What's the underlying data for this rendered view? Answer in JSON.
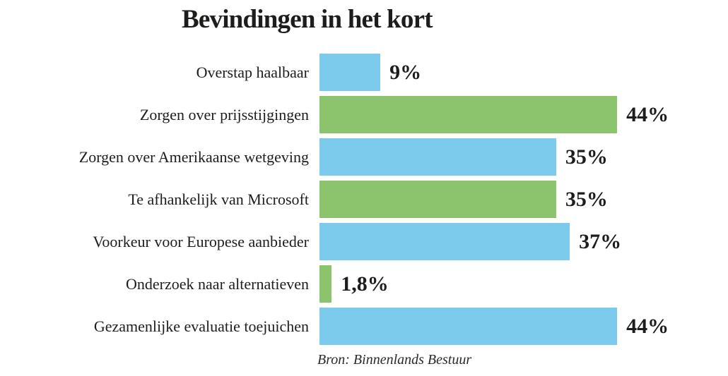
{
  "title": "Bevindingen in het kort",
  "source": "Bron: Binnenlands Bestuur",
  "colors": {
    "blue": "#7dcbec",
    "green": "#8bc46d",
    "text": "#1d1d1b"
  },
  "chart_data": {
    "type": "bar",
    "orientation": "horizontal",
    "title": "Bevindingen in het kort",
    "categories": [
      "Overstap haalbaar",
      "Zorgen over prijsstijgingen",
      "Zorgen over Amerikaanse wetgeving",
      "Te afhankelijk van Microsoft",
      "Voorkeur voor Europese aanbieder",
      "Onderzoek naar alternatieven",
      "Gezamenlijke evaluatie toejuichen"
    ],
    "values": [
      9,
      44,
      35,
      35,
      37,
      1.8,
      44
    ],
    "value_labels": [
      "9%",
      "44%",
      "35%",
      "35%",
      "37%",
      "1,8%",
      "44%"
    ],
    "bar_colors": [
      "blue",
      "green",
      "blue",
      "green",
      "blue",
      "green",
      "blue"
    ],
    "unit": "%",
    "xlim": [
      0,
      47
    ],
    "grid": false,
    "legend": false,
    "value_labels_position": "end-of-bar",
    "source": "Bron: Binnenlands Bestuur"
  }
}
